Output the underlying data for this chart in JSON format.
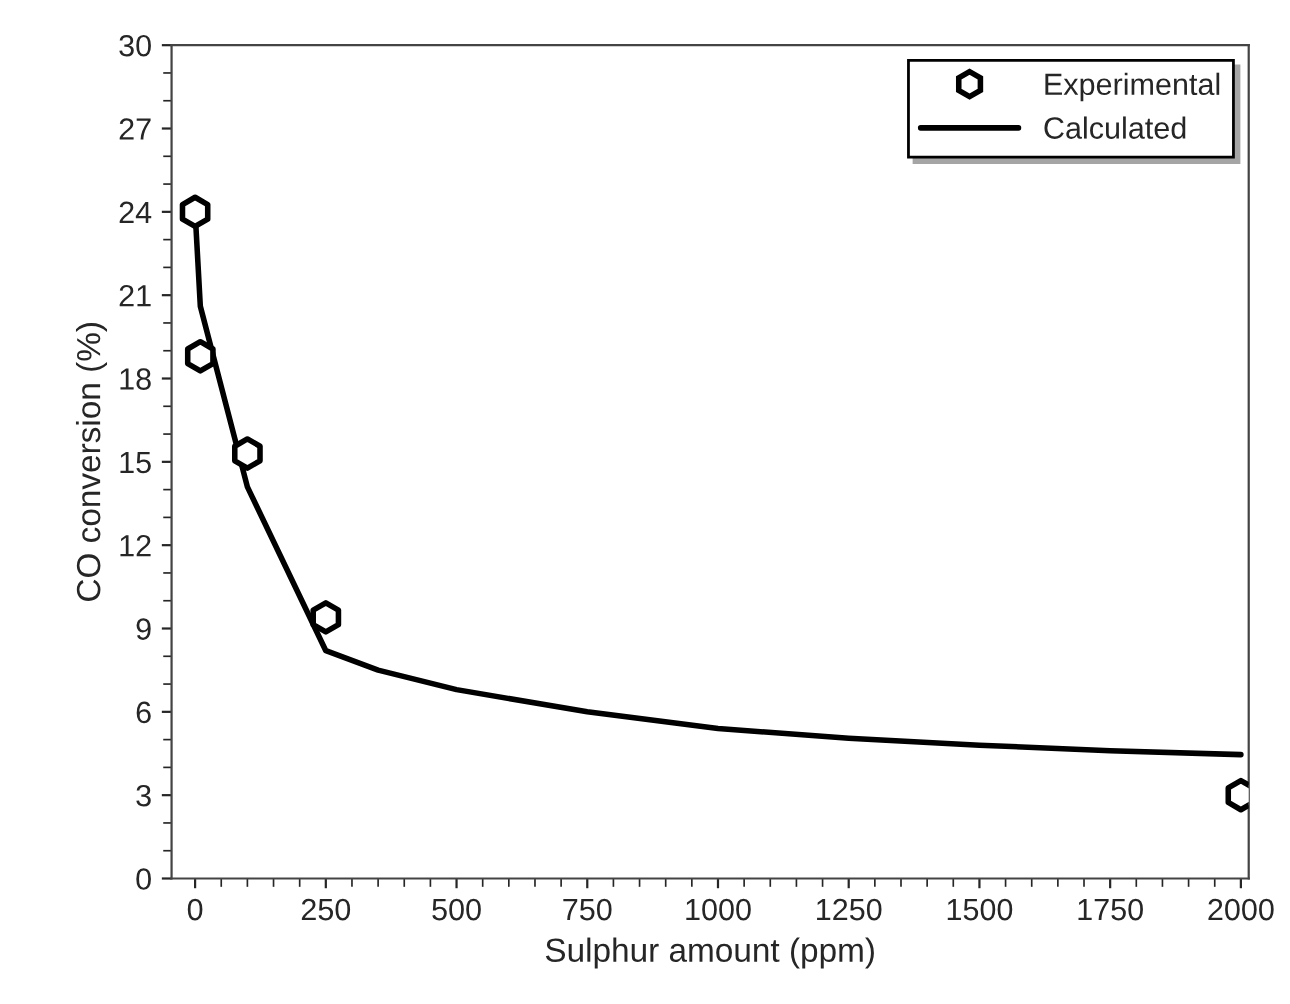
{
  "chart_data": {
    "type": "scatter",
    "xlabel": "Sulphur amount (ppm)",
    "ylabel": "CO conversion (%)",
    "xlim": [
      -45,
      2015
    ],
    "xticks": [
      0,
      250,
      500,
      750,
      1000,
      1250,
      1500,
      1750,
      2000
    ],
    "ylim": [
      0,
      30
    ],
    "yticks": [
      0,
      3,
      6,
      9,
      12,
      15,
      18,
      21,
      24,
      27,
      30
    ],
    "grid": false,
    "legend": "top right",
    "series": [
      {
        "name": "Experimental",
        "color": "#000000",
        "x": [
          0,
          10,
          100,
          250,
          2000
        ],
        "values": [
          24.0,
          18.8,
          15.3,
          9.4,
          3.0
        ]
      },
      {
        "name": "Calculated",
        "type": "line",
        "marker": "none",
        "line_style": "solid",
        "color": "#000000",
        "x": [
          0,
          10,
          100,
          250,
          350,
          500,
          750,
          1000,
          1250,
          1500,
          1750,
          2000
        ],
        "values": [
          24.0,
          20.6,
          14.1,
          8.2,
          7.5,
          6.8,
          6.0,
          5.4,
          5.05,
          4.8,
          4.6,
          4.46
        ]
      }
    ]
  }
}
